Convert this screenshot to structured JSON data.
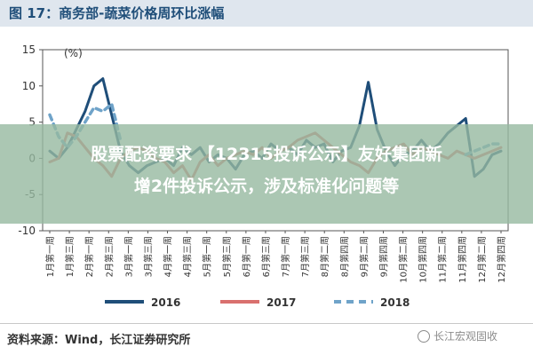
{
  "figure": {
    "title": "图 17：商务部-蔬菜价格周环比涨幅"
  },
  "overlay": {
    "line1": "股票配资要求 【12315投诉公示】友好集团新",
    "line2": "增2件投诉公示，涉及标准化问题等"
  },
  "footer": {
    "source": "资料来源：Wind，长江证券研究所",
    "watermark": "长江宏观固收"
  },
  "colors": {
    "series_2016": "#1f4e79",
    "series_2017": "#d9706e",
    "series_2018": "#6fa3c9",
    "overlay": "#96b9a0",
    "header": "#dfe6ee"
  },
  "chart_data": {
    "type": "line",
    "title": "",
    "xlabel": "",
    "ylabel": "(%)",
    "ylim": [
      -10,
      15
    ],
    "yticks": [
      -10,
      -5,
      0,
      5,
      10,
      15
    ],
    "xtick_labels": [
      "1月第一周",
      "1月第三周",
      "2月第一周",
      "2月第三周",
      "3月第一周",
      "3月第三周",
      "4月第一周",
      "4月第三周",
      "5月第一周",
      "5月第三周",
      "6月第一周",
      "6月第三周",
      "7月第一周",
      "7月第三周",
      "8月第二周",
      "8月第四周",
      "9月第二周",
      "9月第四周",
      "10月第二周",
      "10月第四周",
      "11月第二周",
      "11月第四周",
      "12月第二周",
      "12月第四周"
    ],
    "x": [
      1,
      2,
      3,
      4,
      5,
      6,
      7,
      8,
      9,
      10,
      11,
      12,
      13,
      14,
      15,
      16,
      17,
      18,
      19,
      20,
      21,
      22,
      23,
      24,
      25,
      26,
      27,
      28,
      29,
      30,
      31,
      32,
      33,
      34,
      35,
      36,
      37,
      38,
      39,
      40,
      41,
      42,
      43,
      44,
      45,
      46,
      47,
      48,
      49,
      50,
      51,
      52
    ],
    "legend_position": "bottom",
    "series": [
      {
        "name": "2016",
        "color_key": "series_2016",
        "dash": "solid",
        "values": [
          1,
          0,
          1.5,
          4,
          6.5,
          10,
          11,
          6,
          1,
          -1,
          -2,
          -1,
          -0.5,
          0,
          -1,
          1.5,
          0.5,
          1.5,
          -0.5,
          0.5,
          0,
          -1.5,
          0.5,
          1,
          0,
          2,
          1,
          1.5,
          0.5,
          2.5,
          1.5,
          2,
          -0.5,
          1,
          1.5,
          4.5,
          10.5,
          4,
          1,
          -1,
          0.5,
          1,
          2.5,
          1,
          2,
          3.5,
          4.5,
          5.5,
          -2.5,
          -1.5,
          0.5,
          1
        ]
      },
      {
        "name": "2017",
        "color_key": "series_2017",
        "dash": "solid",
        "values": [
          -0.5,
          0,
          3.5,
          3,
          1.5,
          0,
          -1,
          -2.5,
          0,
          1,
          1.5,
          1,
          0,
          -0.5,
          -2,
          -1,
          -3,
          -0.5,
          0.5,
          -1,
          0,
          0.5,
          1,
          0.5,
          1.5,
          0,
          1,
          1.5,
          2.5,
          3,
          3.5,
          2.5,
          1.5,
          0.5,
          -0.5,
          -1,
          -2,
          0,
          1,
          1.5,
          2,
          0.5,
          1.5,
          1,
          0.5,
          0,
          1,
          0.5,
          0,
          0.5,
          1,
          1.5
        ]
      },
      {
        "name": "2018",
        "color_key": "series_2018",
        "dash": "dashed",
        "values": [
          6,
          3,
          1.5,
          3,
          5,
          7,
          6.5,
          7.5,
          2.5,
          null,
          null,
          null,
          null,
          null,
          null,
          null,
          null,
          null,
          null,
          null,
          null,
          null,
          null,
          null,
          null,
          null,
          null,
          null,
          null,
          null,
          null,
          null,
          null,
          null,
          null,
          null,
          null,
          null,
          null,
          null,
          null,
          null,
          null,
          null,
          null,
          null,
          null,
          0.5,
          1,
          1.5,
          2,
          2
        ]
      }
    ]
  }
}
